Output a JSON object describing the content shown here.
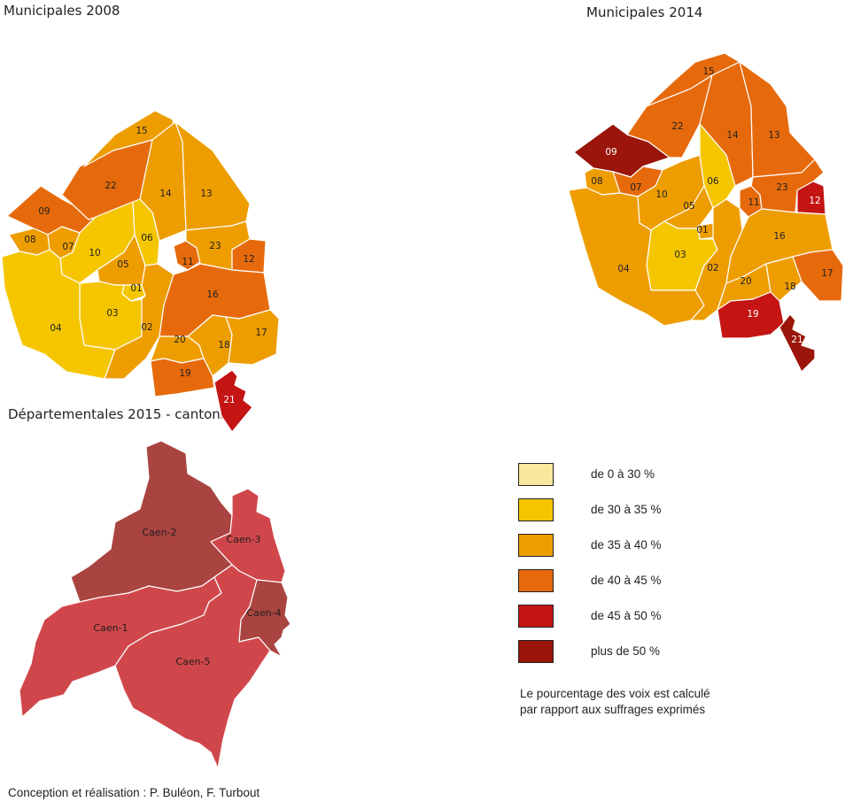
{
  "titles": {
    "map_2008": "Municipales 2008",
    "map_2014": "Municipales 2014",
    "map_2015": "Départementales 2015 - cantons"
  },
  "colors": {
    "0-30": "#F9E79B",
    "30-35": "#F5C600",
    "35-40": "#EE9D00",
    "40-45": "#E66A0C",
    "45-50": "#C41414",
    "50+": "#9B150A",
    "canton_light": "#D0474B",
    "canton_dark": "#A94440"
  },
  "legend": [
    {
      "key": "0-30",
      "label": "de 0 à 30 %"
    },
    {
      "key": "30-35",
      "label": "de 30 à 35 %"
    },
    {
      "key": "35-40",
      "label": "de 35 à 40 %"
    },
    {
      "key": "40-45",
      "label": "de 40 à 45 %"
    },
    {
      "key": "45-50",
      "label": "de 45 à 50 %"
    },
    {
      "key": "50+",
      "label": "plus de 50 %"
    }
  ],
  "note_lines": [
    "Le pourcentage des voix est calculé",
    "par rapport aux suffrages exprimés"
  ],
  "credit": "Conception et réalisation : P. Buléon, F. Turbout",
  "districts_2008": [
    {
      "id": "01",
      "class": "30-35"
    },
    {
      "id": "02",
      "class": "35-40"
    },
    {
      "id": "03",
      "class": "30-35"
    },
    {
      "id": "04",
      "class": "30-35"
    },
    {
      "id": "05",
      "class": "35-40"
    },
    {
      "id": "06",
      "class": "30-35"
    },
    {
      "id": "07",
      "class": "35-40"
    },
    {
      "id": "08",
      "class": "35-40"
    },
    {
      "id": "09",
      "class": "40-45"
    },
    {
      "id": "10",
      "class": "30-35"
    },
    {
      "id": "11",
      "class": "40-45"
    },
    {
      "id": "12",
      "class": "40-45"
    },
    {
      "id": "13",
      "class": "35-40"
    },
    {
      "id": "14",
      "class": "35-40"
    },
    {
      "id": "15",
      "class": "35-40"
    },
    {
      "id": "16",
      "class": "40-45"
    },
    {
      "id": "17",
      "class": "35-40"
    },
    {
      "id": "18",
      "class": "35-40"
    },
    {
      "id": "19",
      "class": "40-45"
    },
    {
      "id": "20",
      "class": "35-40"
    },
    {
      "id": "21",
      "class": "45-50"
    },
    {
      "id": "22",
      "class": "40-45"
    },
    {
      "id": "23",
      "class": "35-40"
    }
  ],
  "districts_2014": [
    {
      "id": "01",
      "class": "35-40"
    },
    {
      "id": "02",
      "class": "35-40"
    },
    {
      "id": "03",
      "class": "30-35"
    },
    {
      "id": "04",
      "class": "35-40"
    },
    {
      "id": "05",
      "class": "35-40"
    },
    {
      "id": "06",
      "class": "30-35"
    },
    {
      "id": "07",
      "class": "40-45"
    },
    {
      "id": "08",
      "class": "35-40"
    },
    {
      "id": "09",
      "class": "50+"
    },
    {
      "id": "10",
      "class": "35-40"
    },
    {
      "id": "11",
      "class": "40-45"
    },
    {
      "id": "12",
      "class": "45-50"
    },
    {
      "id": "13",
      "class": "40-45"
    },
    {
      "id": "14",
      "class": "40-45"
    },
    {
      "id": "15",
      "class": "40-45"
    },
    {
      "id": "16",
      "class": "35-40"
    },
    {
      "id": "17",
      "class": "40-45"
    },
    {
      "id": "18",
      "class": "35-40"
    },
    {
      "id": "19",
      "class": "45-50"
    },
    {
      "id": "20",
      "class": "35-40"
    },
    {
      "id": "21",
      "class": "50+"
    },
    {
      "id": "22",
      "class": "40-45"
    },
    {
      "id": "23",
      "class": "40-45"
    }
  ],
  "cantons_2015": [
    {
      "id": "Caen-1",
      "class": "canton_light"
    },
    {
      "id": "Caen-2",
      "class": "canton_dark"
    },
    {
      "id": "Caen-3",
      "class": "canton_light"
    },
    {
      "id": "Caen-4",
      "class": "canton_dark"
    },
    {
      "id": "Caen-5",
      "class": "canton_light"
    }
  ]
}
